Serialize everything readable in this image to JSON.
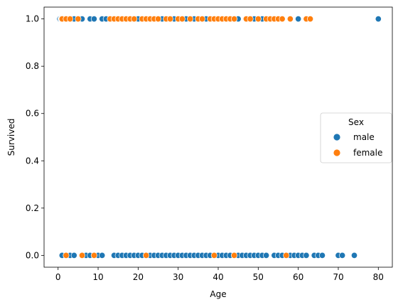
{
  "chart_data": {
    "type": "scatter",
    "xlabel": "Age",
    "ylabel": "Survived",
    "xlim": [
      -3.5,
      83.5
    ],
    "ylim": [
      -0.05,
      1.05
    ],
    "x_ticks": [
      "0",
      "10",
      "20",
      "30",
      "40",
      "50",
      "60",
      "70",
      "80"
    ],
    "y_ticks": [
      "0.0",
      "0.2",
      "0.4",
      "0.6",
      "0.8",
      "1.0"
    ],
    "grid": false,
    "legend": {
      "title": "Sex",
      "placement": "center-right"
    },
    "series": [
      {
        "name": "male",
        "color": "#1f77b4",
        "points": [
          [
            0.42,
            1
          ],
          [
            0.67,
            1
          ],
          [
            0.83,
            1
          ],
          [
            0.92,
            1
          ],
          [
            1,
            1
          ],
          [
            2,
            1
          ],
          [
            3,
            1
          ],
          [
            4,
            1
          ],
          [
            6,
            1
          ],
          [
            8,
            1
          ],
          [
            9,
            1
          ],
          [
            11,
            1
          ],
          [
            12,
            1
          ],
          [
            14,
            1
          ],
          [
            20,
            1
          ],
          [
            26,
            1
          ],
          [
            29,
            1
          ],
          [
            32,
            1
          ],
          [
            34,
            1
          ],
          [
            35,
            1
          ],
          [
            37,
            1
          ],
          [
            39,
            1
          ],
          [
            40,
            1
          ],
          [
            42,
            1
          ],
          [
            45,
            1
          ],
          [
            48,
            1
          ],
          [
            49,
            1
          ],
          [
            51,
            1
          ],
          [
            60,
            1
          ],
          [
            80,
            1
          ],
          [
            1,
            0
          ],
          [
            2,
            0
          ],
          [
            3,
            0
          ],
          [
            4,
            0
          ],
          [
            7,
            0
          ],
          [
            8,
            0
          ],
          [
            9,
            0
          ],
          [
            10,
            0
          ],
          [
            11,
            0
          ],
          [
            14,
            0
          ],
          [
            15,
            0
          ],
          [
            16,
            0
          ],
          [
            17,
            0
          ],
          [
            18,
            0
          ],
          [
            19,
            0
          ],
          [
            20,
            0
          ],
          [
            21,
            0
          ],
          [
            22,
            0
          ],
          [
            23,
            0
          ],
          [
            24,
            0
          ],
          [
            25,
            0
          ],
          [
            26,
            0
          ],
          [
            27,
            0
          ],
          [
            28,
            0
          ],
          [
            29,
            0
          ],
          [
            30,
            0
          ],
          [
            31,
            0
          ],
          [
            32,
            0
          ],
          [
            33,
            0
          ],
          [
            34,
            0
          ],
          [
            35,
            0
          ],
          [
            36,
            0
          ],
          [
            37,
            0
          ],
          [
            38,
            0
          ],
          [
            40,
            0
          ],
          [
            41,
            0
          ],
          [
            42,
            0
          ],
          [
            43,
            0
          ],
          [
            44,
            0
          ],
          [
            45,
            0
          ],
          [
            46,
            0
          ],
          [
            47,
            0
          ],
          [
            48,
            0
          ],
          [
            49,
            0
          ],
          [
            50,
            0
          ],
          [
            51,
            0
          ],
          [
            52,
            0
          ],
          [
            54,
            0
          ],
          [
            55,
            0
          ],
          [
            56,
            0
          ],
          [
            58,
            0
          ],
          [
            59,
            0
          ],
          [
            60,
            0
          ],
          [
            61,
            0
          ],
          [
            62,
            0
          ],
          [
            64,
            0
          ],
          [
            65,
            0
          ],
          [
            66,
            0
          ],
          [
            70,
            0
          ],
          [
            71,
            0
          ],
          [
            74,
            0
          ]
        ]
      },
      {
        "name": "female",
        "color": "#ff7f0e",
        "points": [
          [
            1,
            1
          ],
          [
            2,
            1
          ],
          [
            3,
            1
          ],
          [
            5,
            1
          ],
          [
            13,
            1
          ],
          [
            14,
            1
          ],
          [
            15,
            1
          ],
          [
            16,
            1
          ],
          [
            17,
            1
          ],
          [
            18,
            1
          ],
          [
            19,
            1
          ],
          [
            21,
            1
          ],
          [
            22,
            1
          ],
          [
            23,
            1
          ],
          [
            24,
            1
          ],
          [
            25,
            1
          ],
          [
            27,
            1
          ],
          [
            28,
            1
          ],
          [
            30,
            1
          ],
          [
            31,
            1
          ],
          [
            33,
            1
          ],
          [
            35,
            1
          ],
          [
            36,
            1
          ],
          [
            38,
            1
          ],
          [
            39,
            1
          ],
          [
            40,
            1
          ],
          [
            41,
            1
          ],
          [
            42,
            1
          ],
          [
            43,
            1
          ],
          [
            44,
            1
          ],
          [
            47,
            1
          ],
          [
            48,
            1
          ],
          [
            50,
            1
          ],
          [
            52,
            1
          ],
          [
            53,
            1
          ],
          [
            54,
            1
          ],
          [
            55,
            1
          ],
          [
            56,
            1
          ],
          [
            58,
            1
          ],
          [
            62,
            1
          ],
          [
            63,
            1
          ],
          [
            2,
            0
          ],
          [
            6,
            0
          ],
          [
            9,
            0
          ],
          [
            22,
            0
          ],
          [
            39,
            0
          ],
          [
            44,
            0
          ],
          [
            57,
            0
          ]
        ]
      }
    ]
  }
}
